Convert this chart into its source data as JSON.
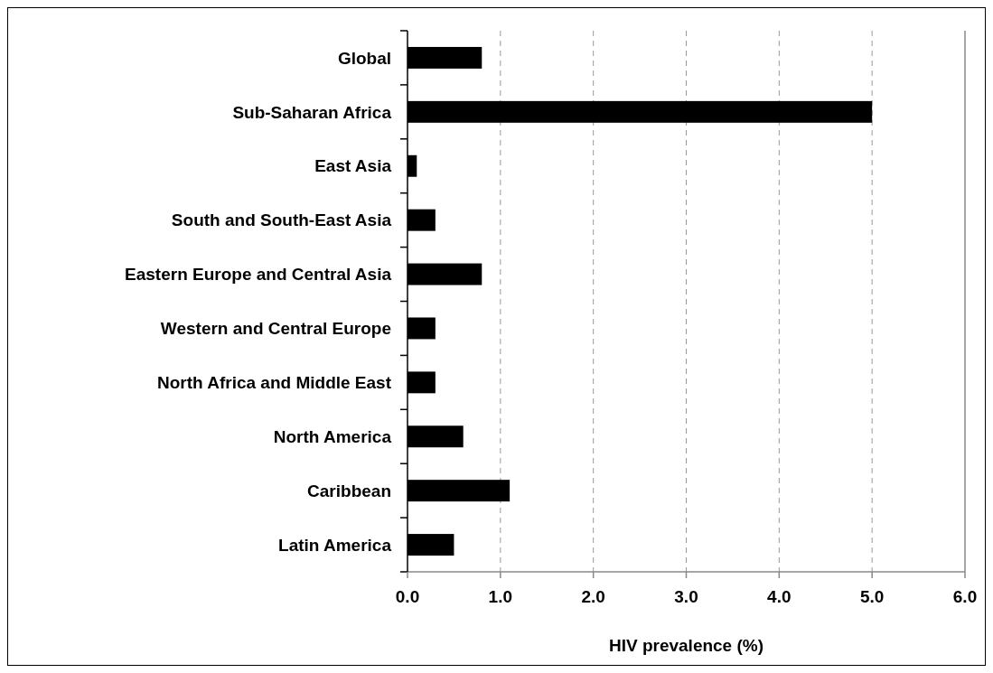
{
  "chart_data": {
    "type": "bar",
    "orientation": "horizontal",
    "xlabel": "HIV prevalence (%)",
    "categories": [
      "Global",
      "Sub-Saharan Africa",
      "East Asia",
      "South and South-East Asia",
      "Eastern Europe and Central Asia",
      "Western and Central Europe",
      "North Africa and Middle East",
      "North America",
      "Caribbean",
      "Latin America"
    ],
    "values": [
      0.8,
      5.0,
      0.1,
      0.3,
      0.8,
      0.3,
      0.3,
      0.6,
      1.1,
      0.5
    ],
    "color": "#000000",
    "xlim": [
      0,
      6
    ],
    "xticks": [
      {
        "value": 0,
        "label": "0.0"
      },
      {
        "value": 1,
        "label": "1.0"
      },
      {
        "value": 2,
        "label": "2.0"
      },
      {
        "value": 3,
        "label": "3.0"
      },
      {
        "value": 4,
        "label": "4.0"
      },
      {
        "value": 5,
        "label": "5.0"
      },
      {
        "value": 6,
        "label": "6.0"
      }
    ],
    "grid": "x"
  }
}
